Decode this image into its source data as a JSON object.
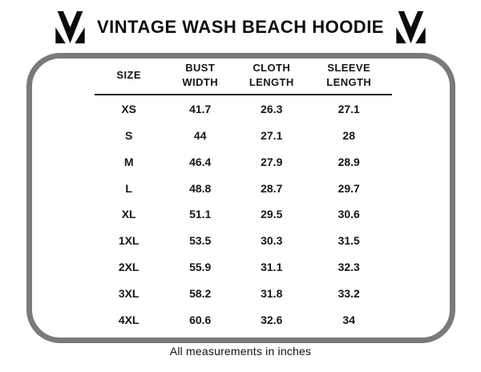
{
  "header": {
    "title": "VINTAGE WASH BEACH HOODIE",
    "logo": "brand-m-monogram-icon"
  },
  "chart_data": {
    "type": "table",
    "title": "VINTAGE WASH BEACH HOODIE",
    "columns": [
      "SIZE",
      "BUST WIDTH",
      "CLOTH LENGTH",
      "SLEEVE LENGTH"
    ],
    "rows": [
      [
        "XS",
        "41.7",
        "26.3",
        "27.1"
      ],
      [
        "S",
        "44",
        "27.1",
        "28"
      ],
      [
        "M",
        "46.4",
        "27.9",
        "28.9"
      ],
      [
        "L",
        "48.8",
        "28.7",
        "29.7"
      ],
      [
        "XL",
        "51.1",
        "29.5",
        "30.6"
      ],
      [
        "1XL",
        "53.5",
        "30.3",
        "31.5"
      ],
      [
        "2XL",
        "55.9",
        "31.1",
        "32.3"
      ],
      [
        "3XL",
        "58.2",
        "31.8",
        "33.2"
      ],
      [
        "4XL",
        "60.6",
        "32.6",
        "34"
      ]
    ],
    "units": "inches"
  },
  "footer": {
    "note": "All measurements in inches"
  },
  "colors": {
    "panel_border": "#7a7a7a",
    "text": "#121212",
    "header_rule": "#1a1a1a",
    "logo": "#0b0b0b"
  }
}
